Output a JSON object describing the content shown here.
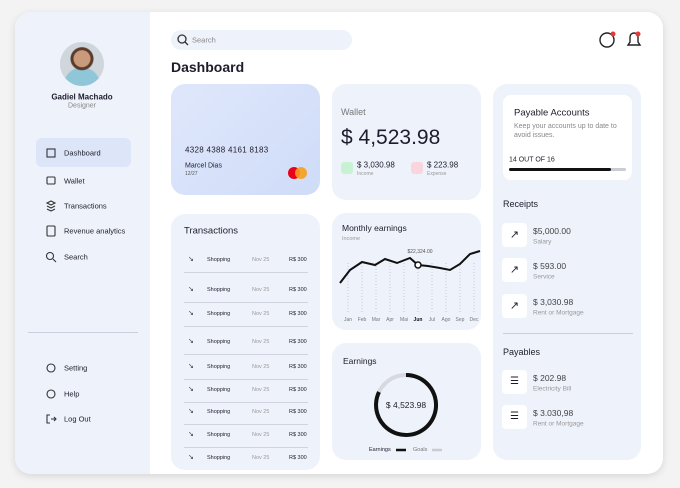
{
  "sidebar": {
    "user": {
      "name": "Gadiel Machado",
      "role": "Designer"
    },
    "menu": [
      "Dashboard",
      "Wallet",
      "Transactions",
      "Revenue analytics",
      "Search"
    ],
    "footer_menu": [
      "Setting",
      "Help",
      "Log Out"
    ]
  },
  "header": {
    "search_placeholder": "Search",
    "title": "Dashboard"
  },
  "card": {
    "number": "4328 4388 4161 8183",
    "holder": "Marcel Dias",
    "expiry": "12/27"
  },
  "wallet": {
    "label": "Wallet",
    "balance": "$ 4,523.98",
    "income": {
      "amount": "$ 3,030.98",
      "label": "Income"
    },
    "expense": {
      "amount": "$ 223.98",
      "label": "Expense"
    }
  },
  "transactions": {
    "title": "Transactions",
    "rows": [
      [
        "Shopping",
        "Nov 25",
        "R$ 300"
      ],
      [
        "Shopping",
        "Nov 25",
        "R$ 300"
      ],
      [
        "Shopping",
        "Nov 25",
        "R$ 300"
      ],
      [
        "Shopping",
        "Nov 25",
        "R$ 300"
      ],
      [
        "Shopping",
        "Nov 25",
        "R$ 300"
      ],
      [
        "Shopping",
        "Nov 25",
        "R$ 300"
      ],
      [
        "Shopping",
        "Nov 25",
        "R$ 300"
      ],
      [
        "Shopping",
        "Nov 25",
        "R$ 300"
      ],
      [
        "Shopping",
        "Nov 25",
        "R$ 300"
      ]
    ]
  },
  "monthly_earnings": {
    "title": "Monthly earnings",
    "subtitle": "Income",
    "tooltip": "$22,324.00",
    "months": [
      "Jan",
      "Feb",
      "Mar",
      "Apr",
      "Mai",
      "Jun",
      "Jul",
      "Ago",
      "Sep",
      "Dec"
    ]
  },
  "earnings": {
    "title": "Earnings",
    "amount": "$ 4,523.98",
    "legend": [
      "Earnings",
      "Goals"
    ]
  },
  "payable_accounts": {
    "title": "Payable Accounts",
    "description": "Keep your accounts up to date to avoid issues.",
    "progress": "14 OUT OF 16"
  },
  "receipts": {
    "title": "Receipts",
    "items": [
      {
        "amount": "$5,000.00",
        "label": "Salary"
      },
      {
        "amount": "$ 593.00",
        "label": "Service"
      },
      {
        "amount": "$ 3,030.98",
        "label": "Rent or Mortgage"
      }
    ]
  },
  "payables": {
    "title": "Payables",
    "items": [
      {
        "amount": "$ 202.98",
        "label": "Electricity Bill"
      },
      {
        "amount": "$ 3.030,98",
        "label": "Rent or Mortgage"
      }
    ]
  }
}
